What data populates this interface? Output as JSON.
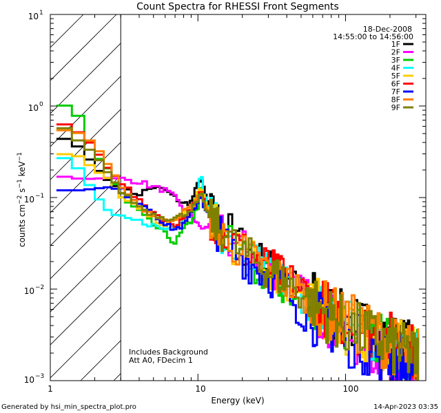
{
  "chart_data": {
    "type": "line",
    "title": "Count Spectra for RHESSI Front Segments",
    "xlabel": "Energy (keV)",
    "ylabel": "counts cm-2 s-1 keV-1",
    "xscale": "log",
    "yscale": "log",
    "xlim": [
      1,
      350
    ],
    "ylim": [
      0.001,
      10
    ],
    "x_ticks": [
      "1",
      "10",
      "100"
    ],
    "y_ticks": [
      "10-3",
      "10-2",
      "10-1",
      "100",
      "101"
    ],
    "date": "18-Dec-2008",
    "time_range": "14:55:00 to 14:56:00",
    "legend_position": "top-right",
    "shaded_region_below_keV": 3,
    "annotation": [
      "Includes Background",
      "Att A0, FDecim 1"
    ],
    "footer_left": "Generated by hsi_min_spectra_plot.pro",
    "footer_right": "14-Apr-2023 03:35",
    "series": [
      {
        "name": "1F",
        "color": "#000000",
        "points": [
          [
            1.2,
            0.45
          ],
          [
            1.6,
            0.35
          ],
          [
            2,
            0.22
          ],
          [
            2.5,
            0.15
          ],
          [
            3,
            0.12
          ],
          [
            4,
            0.11
          ],
          [
            5,
            0.13
          ],
          [
            6,
            0.12
          ],
          [
            7,
            0.1
          ],
          [
            8,
            0.085
          ],
          [
            9,
            0.09
          ],
          [
            10,
            0.14
          ],
          [
            10.5,
            0.17
          ],
          [
            11,
            0.12
          ],
          [
            12,
            0.075
          ],
          [
            14,
            0.055
          ],
          [
            16,
            0.045
          ],
          [
            20,
            0.03
          ],
          [
            25,
            0.022
          ],
          [
            30,
            0.018
          ],
          [
            40,
            0.012
          ],
          [
            50,
            0.009
          ],
          [
            60,
            0.008
          ],
          [
            80,
            0.0055
          ],
          [
            100,
            0.0045
          ],
          [
            150,
            0.0035
          ],
          [
            200,
            0.0028
          ],
          [
            300,
            0.0021
          ]
        ]
      },
      {
        "name": "2F",
        "color": "#ff00ff",
        "points": [
          [
            1.2,
            0.17
          ],
          [
            1.6,
            0.16
          ],
          [
            2,
            0.16
          ],
          [
            2.5,
            0.165
          ],
          [
            3,
            0.16
          ],
          [
            4,
            0.15
          ],
          [
            5,
            0.13
          ],
          [
            6,
            0.12
          ],
          [
            7,
            0.1
          ],
          [
            8,
            0.075
          ],
          [
            9,
            0.065
          ],
          [
            10,
            0.05
          ],
          [
            11,
            0.045
          ],
          [
            12,
            0.05
          ],
          [
            14,
            0.045
          ],
          [
            16,
            0.035
          ],
          [
            20,
            0.028
          ],
          [
            25,
            0.022
          ],
          [
            30,
            0.018
          ],
          [
            40,
            0.012
          ],
          [
            50,
            0.009
          ],
          [
            60,
            0.007
          ],
          [
            80,
            0.0045
          ],
          [
            100,
            0.0035
          ],
          [
            150,
            0.0022
          ],
          [
            200,
            0.0016
          ],
          [
            300,
            0.0012
          ]
        ]
      },
      {
        "name": "3F",
        "color": "#00cc00",
        "points": [
          [
            1.2,
            1.05
          ],
          [
            1.6,
            0.75
          ],
          [
            2,
            0.3
          ],
          [
            2.5,
            0.2
          ],
          [
            3,
            0.1
          ],
          [
            4,
            0.07
          ],
          [
            5,
            0.05
          ],
          [
            6,
            0.04
          ],
          [
            7,
            0.032
          ],
          [
            8,
            0.045
          ],
          [
            9,
            0.055
          ],
          [
            10,
            0.08
          ],
          [
            10.5,
            0.13
          ],
          [
            11,
            0.1
          ],
          [
            12,
            0.06
          ],
          [
            14,
            0.04
          ],
          [
            16,
            0.035
          ],
          [
            20,
            0.022
          ],
          [
            25,
            0.019
          ],
          [
            30,
            0.015
          ],
          [
            40,
            0.011
          ],
          [
            50,
            0.008
          ],
          [
            60,
            0.007
          ],
          [
            80,
            0.005
          ],
          [
            100,
            0.004
          ],
          [
            150,
            0.003
          ],
          [
            200,
            0.0024
          ],
          [
            300,
            0.0018
          ]
        ]
      },
      {
        "name": "4F",
        "color": "#00ffff",
        "points": [
          [
            1.2,
            0.28
          ],
          [
            1.6,
            0.2
          ],
          [
            2,
            0.11
          ],
          [
            2.5,
            0.07
          ],
          [
            3,
            0.06
          ],
          [
            4,
            0.055
          ],
          [
            5,
            0.05
          ],
          [
            6,
            0.045
          ],
          [
            7,
            0.05
          ],
          [
            8,
            0.06
          ],
          [
            9,
            0.08
          ],
          [
            10,
            0.12
          ],
          [
            10.5,
            0.18
          ],
          [
            11,
            0.11
          ],
          [
            12,
            0.07
          ],
          [
            14,
            0.045
          ],
          [
            16,
            0.03
          ],
          [
            20,
            0.025
          ],
          [
            25,
            0.02
          ],
          [
            30,
            0.016
          ],
          [
            40,
            0.012
          ],
          [
            50,
            0.009
          ],
          [
            60,
            0.007
          ],
          [
            80,
            0.005
          ],
          [
            100,
            0.004
          ],
          [
            150,
            0.003
          ],
          [
            200,
            0.0026
          ],
          [
            300,
            0.0019
          ]
        ]
      },
      {
        "name": "5F",
        "color": "#ffcc00",
        "points": [
          [
            1.2,
            0.3
          ],
          [
            1.6,
            0.28
          ],
          [
            2,
            0.2
          ],
          [
            2.5,
            0.16
          ],
          [
            3,
            0.1
          ],
          [
            4,
            0.075
          ],
          [
            5,
            0.06
          ],
          [
            6,
            0.05
          ],
          [
            7,
            0.055
          ],
          [
            8,
            0.065
          ],
          [
            9,
            0.075
          ],
          [
            10,
            0.11
          ],
          [
            10.5,
            0.14
          ],
          [
            11,
            0.1
          ],
          [
            12,
            0.065
          ],
          [
            14,
            0.045
          ],
          [
            16,
            0.035
          ],
          [
            20,
            0.025
          ],
          [
            25,
            0.02
          ],
          [
            30,
            0.016
          ],
          [
            40,
            0.012
          ],
          [
            50,
            0.009
          ],
          [
            60,
            0.007
          ],
          [
            80,
            0.005
          ],
          [
            100,
            0.004
          ],
          [
            150,
            0.003
          ],
          [
            200,
            0.0025
          ],
          [
            300,
            0.0018
          ]
        ]
      },
      {
        "name": "6F",
        "color": "#ff0000",
        "points": [
          [
            1.2,
            0.65
          ],
          [
            1.6,
            0.5
          ],
          [
            2,
            0.35
          ],
          [
            2.5,
            0.2
          ],
          [
            3,
            0.15
          ],
          [
            4,
            0.09
          ],
          [
            5,
            0.07
          ],
          [
            6,
            0.055
          ],
          [
            7,
            0.05
          ],
          [
            8,
            0.06
          ],
          [
            9,
            0.075
          ],
          [
            10,
            0.1
          ],
          [
            10.5,
            0.12
          ],
          [
            11,
            0.09
          ],
          [
            12,
            0.06
          ],
          [
            14,
            0.045
          ],
          [
            16,
            0.035
          ],
          [
            20,
            0.028
          ],
          [
            25,
            0.022
          ],
          [
            30,
            0.018
          ],
          [
            40,
            0.013
          ],
          [
            50,
            0.01
          ],
          [
            60,
            0.008
          ],
          [
            80,
            0.0055
          ],
          [
            100,
            0.0045
          ],
          [
            150,
            0.0035
          ],
          [
            200,
            0.0028
          ],
          [
            300,
            0.002
          ]
        ]
      },
      {
        "name": "7F",
        "color": "#0000ff",
        "points": [
          [
            1.2,
            0.12
          ],
          [
            1.6,
            0.12
          ],
          [
            2,
            0.125
          ],
          [
            2.5,
            0.13
          ],
          [
            3,
            0.12
          ],
          [
            4,
            0.09
          ],
          [
            5,
            0.07
          ],
          [
            6,
            0.05
          ],
          [
            7,
            0.045
          ],
          [
            8,
            0.05
          ],
          [
            9,
            0.065
          ],
          [
            10,
            0.09
          ],
          [
            10.5,
            0.11
          ],
          [
            11,
            0.08
          ],
          [
            12,
            0.06
          ],
          [
            14,
            0.04
          ],
          [
            16,
            0.03
          ],
          [
            20,
            0.022
          ],
          [
            25,
            0.017
          ],
          [
            30,
            0.014
          ],
          [
            40,
            0.01
          ],
          [
            50,
            0.006
          ],
          [
            60,
            0.005
          ],
          [
            80,
            0.004
          ],
          [
            100,
            0.003
          ],
          [
            150,
            0.0022
          ],
          [
            200,
            0.0018
          ],
          [
            300,
            0.0014
          ]
        ]
      },
      {
        "name": "8F",
        "color": "#ff8000",
        "points": [
          [
            1.2,
            0.55
          ],
          [
            1.6,
            0.5
          ],
          [
            2,
            0.38
          ],
          [
            2.5,
            0.22
          ],
          [
            3,
            0.14
          ],
          [
            4,
            0.08
          ],
          [
            5,
            0.065
          ],
          [
            6,
            0.055
          ],
          [
            7,
            0.06
          ],
          [
            8,
            0.07
          ],
          [
            9,
            0.08
          ],
          [
            10,
            0.1
          ],
          [
            10.5,
            0.12
          ],
          [
            11,
            0.09
          ],
          [
            12,
            0.06
          ],
          [
            14,
            0.045
          ],
          [
            16,
            0.035
          ],
          [
            20,
            0.025
          ],
          [
            25,
            0.02
          ],
          [
            30,
            0.016
          ],
          [
            40,
            0.012
          ],
          [
            50,
            0.009
          ],
          [
            60,
            0.007
          ],
          [
            80,
            0.0055
          ],
          [
            100,
            0.0045
          ],
          [
            150,
            0.0035
          ],
          [
            200,
            0.0025
          ],
          [
            300,
            0.0019
          ]
        ]
      },
      {
        "name": "9F",
        "color": "#808000",
        "points": [
          [
            1.2,
            0.6
          ],
          [
            1.6,
            0.4
          ],
          [
            2,
            0.3
          ],
          [
            2.5,
            0.18
          ],
          [
            3,
            0.12
          ],
          [
            4,
            0.08
          ],
          [
            5,
            0.065
          ],
          [
            6,
            0.06
          ],
          [
            7,
            0.06
          ],
          [
            8,
            0.065
          ],
          [
            9,
            0.075
          ],
          [
            10,
            0.09
          ],
          [
            10.5,
            0.11
          ],
          [
            11,
            0.085
          ],
          [
            12,
            0.06
          ],
          [
            14,
            0.045
          ],
          [
            16,
            0.035
          ],
          [
            20,
            0.025
          ],
          [
            25,
            0.02
          ],
          [
            30,
            0.016
          ],
          [
            40,
            0.012
          ],
          [
            50,
            0.009
          ],
          [
            60,
            0.007
          ],
          [
            80,
            0.005
          ],
          [
            100,
            0.004
          ],
          [
            150,
            0.003
          ],
          [
            200,
            0.0024
          ],
          [
            300,
            0.0018
          ]
        ]
      }
    ]
  }
}
